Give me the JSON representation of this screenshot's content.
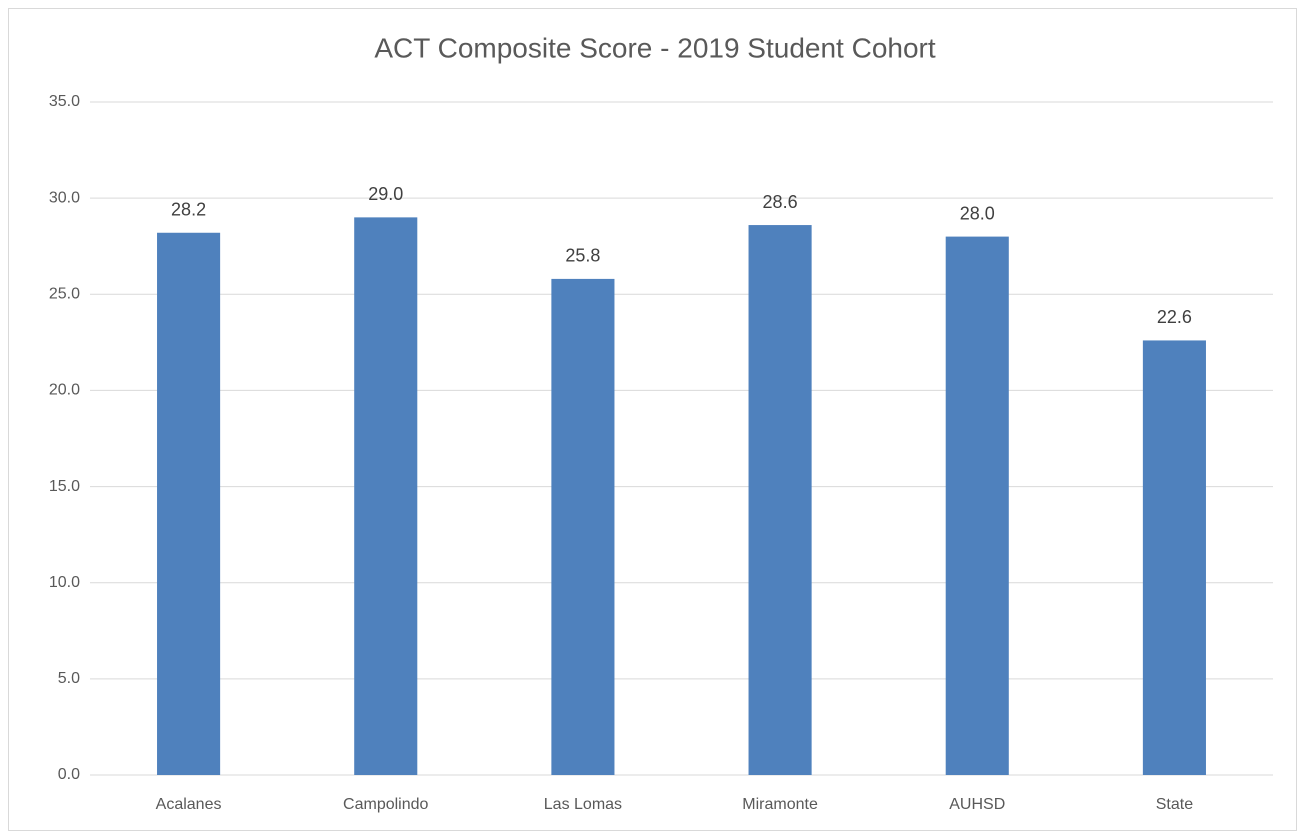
{
  "chart_data": {
    "type": "bar",
    "title": "ACT Composite Score - 2019 Student Cohort",
    "categories": [
      "Acalanes",
      "Campolindo",
      "Las Lomas",
      "Miramonte",
      "AUHSD",
      "State"
    ],
    "values": [
      28.2,
      29.0,
      25.8,
      28.6,
      28.0,
      22.6
    ],
    "value_labels": [
      "28.2",
      "29.0",
      "25.8",
      "28.6",
      "28.0",
      "22.6"
    ],
    "color": "#4f81bd",
    "ylim": [
      0,
      35
    ],
    "yticks": [
      {
        "value": 0,
        "label": "0.0"
      },
      {
        "value": 5,
        "label": "5.0"
      },
      {
        "value": 10,
        "label": "10.0"
      },
      {
        "value": 15,
        "label": "15.0"
      },
      {
        "value": 20,
        "label": "20.0"
      },
      {
        "value": 25,
        "label": "25.0"
      },
      {
        "value": 30,
        "label": "30.0"
      },
      {
        "value": 35,
        "label": "35.0"
      }
    ],
    "grid": true
  }
}
